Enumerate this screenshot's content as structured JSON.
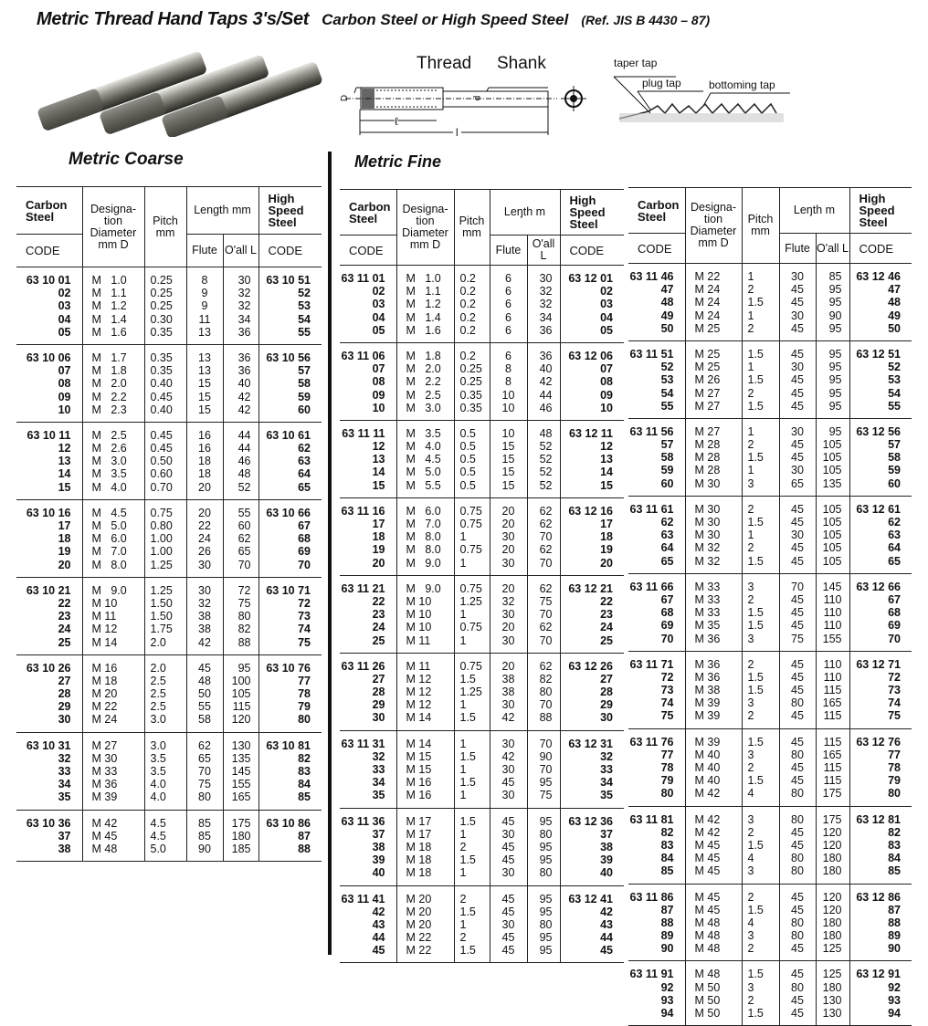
{
  "header": {
    "title": "Metric Thread Hand Taps  3's/Set",
    "subtitle": "Carbon Steel or  High Speed Steel",
    "reference": "(Ref. JIS B 4430 – 87)"
  },
  "diagram": {
    "thread": "Thread",
    "shank": "Shank",
    "D": "D",
    "d": "d",
    "l_small": "ℓ",
    "l_large": "l",
    "taper_tap": "taper tap",
    "plug_tap": "plug tap",
    "bottoming_tap": "bottoming tap"
  },
  "sections": {
    "coarse": "Metric Coarse",
    "fine": "Metric Fine"
  },
  "table_headers": {
    "coarse": {
      "carbon": "Carbon Steel",
      "code": "CODE",
      "desig": "Designa-tion Diameter mm  D",
      "pitch": "Pitch mm",
      "length": "Length mm",
      "flute": "Flute",
      "oall": "O'all L",
      "hss": "High Speed Steel",
      "hss_code": "CODE"
    },
    "fine": {
      "carbon": "Carbon Steel",
      "code": "CODE",
      "desig": "Designa-tion Diameter mm  D",
      "pitch": "Pitch mm",
      "length": "Leŋth m",
      "flute": "Flute",
      "oall": "O'all L",
      "hss": "High Speed Steel",
      "hss_code": "CODE"
    }
  },
  "tables": {
    "coarse": [
      [
        [
          "63 10 01",
          "M   1.0",
          "0.25",
          "8",
          "30",
          "63 10 51"
        ],
        [
          "02",
          "M   1.1",
          "0.25",
          "9",
          "32",
          "52"
        ],
        [
          "03",
          "M   1.2",
          "0.25",
          "9",
          "32",
          "53"
        ],
        [
          "04",
          "M   1.4",
          "0.30",
          "11",
          "34",
          "54"
        ],
        [
          "05",
          "M   1.6",
          "0.35",
          "13",
          "36",
          "55"
        ]
      ],
      [
        [
          "63 10 06",
          "M   1.7",
          "0.35",
          "13",
          "36",
          "63 10 56"
        ],
        [
          "07",
          "M   1.8",
          "0.35",
          "13",
          "36",
          "57"
        ],
        [
          "08",
          "M   2.0",
          "0.40",
          "15",
          "40",
          "58"
        ],
        [
          "09",
          "M   2.2",
          "0.45",
          "15",
          "42",
          "59"
        ],
        [
          "10",
          "M   2.3",
          "0.40",
          "15",
          "42",
          "60"
        ]
      ],
      [
        [
          "63 10 11",
          "M   2.5",
          "0.45",
          "16",
          "44",
          "63 10 61"
        ],
        [
          "12",
          "M   2.6",
          "0.45",
          "16",
          "44",
          "62"
        ],
        [
          "13",
          "M   3.0",
          "0.50",
          "18",
          "46",
          "63"
        ],
        [
          "14",
          "M   3.5",
          "0.60",
          "18",
          "48",
          "64"
        ],
        [
          "15",
          "M   4.0",
          "0.70",
          "20",
          "52",
          "65"
        ]
      ],
      [
        [
          "63 10 16",
          "M   4.5",
          "0.75",
          "20",
          "55",
          "63 10 66"
        ],
        [
          "17",
          "M   5.0",
          "0.80",
          "22",
          "60",
          "67"
        ],
        [
          "18",
          "M   6.0",
          "1.00",
          "24",
          "62",
          "68"
        ],
        [
          "19",
          "M   7.0",
          "1.00",
          "26",
          "65",
          "69"
        ],
        [
          "20",
          "M   8.0",
          "1.25",
          "30",
          "70",
          "70"
        ]
      ],
      [
        [
          "63 10 21",
          "M   9.0",
          "1.25",
          "30",
          "72",
          "63 10 71"
        ],
        [
          "22",
          "M 10",
          "1.50",
          "32",
          "75",
          "72"
        ],
        [
          "23",
          "M 11",
          "1.50",
          "38",
          "80",
          "73"
        ],
        [
          "24",
          "M 12",
          "1.75",
          "38",
          "82",
          "74"
        ],
        [
          "25",
          "M 14",
          "2.0",
          "42",
          "88",
          "75"
        ]
      ],
      [
        [
          "63 10 26",
          "M 16",
          "2.0",
          "45",
          "95",
          "63 10 76"
        ],
        [
          "27",
          "M 18",
          "2.5",
          "48",
          "100",
          "77"
        ],
        [
          "28",
          "M 20",
          "2.5",
          "50",
          "105",
          "78"
        ],
        [
          "29",
          "M 22",
          "2.5",
          "55",
          "115",
          "79"
        ],
        [
          "30",
          "M 24",
          "3.0",
          "58",
          "120",
          "80"
        ]
      ],
      [
        [
          "63 10 31",
          "M 27",
          "3.0",
          "62",
          "130",
          "63 10 81"
        ],
        [
          "32",
          "M 30",
          "3.5",
          "65",
          "135",
          "82"
        ],
        [
          "33",
          "M 33",
          "3.5",
          "70",
          "145",
          "83"
        ],
        [
          "34",
          "M 36",
          "4.0",
          "75",
          "155",
          "84"
        ],
        [
          "35",
          "M 39",
          "4.0",
          "80",
          "165",
          "85"
        ]
      ],
      [
        [
          "63 10 36",
          "M 42",
          "4.5",
          "85",
          "175",
          "63 10 86"
        ],
        [
          "37",
          "M 45",
          "4.5",
          "85",
          "180",
          "87"
        ],
        [
          "38",
          "M 48",
          "5.0",
          "90",
          "185",
          "88"
        ]
      ]
    ],
    "fine_1": [
      [
        [
          "63 11 01",
          "M   1.0",
          "0.2",
          "6",
          "30",
          "63 12 01"
        ],
        [
          "02",
          "M   1.1",
          "0.2",
          "6",
          "32",
          "02"
        ],
        [
          "03",
          "M   1.2",
          "0.2",
          "6",
          "32",
          "03"
        ],
        [
          "04",
          "M   1.4",
          "0.2",
          "6",
          "34",
          "04"
        ],
        [
          "05",
          "M   1.6",
          "0.2",
          "6",
          "36",
          "05"
        ]
      ],
      [
        [
          "63 11 06",
          "M   1.8",
          "0.2",
          "6",
          "36",
          "63 12 06"
        ],
        [
          "07",
          "M   2.0",
          "0.25",
          "8",
          "40",
          "07"
        ],
        [
          "08",
          "M   2.2",
          "0.25",
          "8",
          "42",
          "08"
        ],
        [
          "09",
          "M   2.5",
          "0.35",
          "10",
          "44",
          "09"
        ],
        [
          "10",
          "M   3.0",
          "0.35",
          "10",
          "46",
          "10"
        ]
      ],
      [
        [
          "63 11 11",
          "M   3.5",
          "0.5",
          "10",
          "48",
          "63 12 11"
        ],
        [
          "12",
          "M   4.0",
          "0.5",
          "15",
          "52",
          "12"
        ],
        [
          "13",
          "M   4.5",
          "0.5",
          "15",
          "52",
          "13"
        ],
        [
          "14",
          "M   5.0",
          "0.5",
          "15",
          "52",
          "14"
        ],
        [
          "15",
          "M   5.5",
          "0.5",
          "15",
          "52",
          "15"
        ]
      ],
      [
        [
          "63 11 16",
          "M   6.0",
          "0.75",
          "20",
          "62",
          "63 12 16"
        ],
        [
          "17",
          "M   7.0",
          "0.75",
          "20",
          "62",
          "17"
        ],
        [
          "18",
          "M   8.0",
          "1",
          "30",
          "70",
          "18"
        ],
        [
          "19",
          "M   8.0",
          "0.75",
          "20",
          "62",
          "19"
        ],
        [
          "20",
          "M   9.0",
          "1",
          "30",
          "70",
          "20"
        ]
      ],
      [
        [
          "63 11 21",
          "M   9.0",
          "0.75",
          "20",
          "62",
          "63 12 21"
        ],
        [
          "22",
          "M 10",
          "1.25",
          "32",
          "75",
          "22"
        ],
        [
          "23",
          "M 10",
          "1",
          "30",
          "70",
          "23"
        ],
        [
          "24",
          "M 10",
          "0.75",
          "20",
          "62",
          "24"
        ],
        [
          "25",
          "M 11",
          "1",
          "30",
          "70",
          "25"
        ]
      ],
      [
        [
          "63 11 26",
          "M 11",
          "0.75",
          "20",
          "62",
          "63 12 26"
        ],
        [
          "27",
          "M 12",
          "1.5",
          "38",
          "82",
          "27"
        ],
        [
          "28",
          "M 12",
          "1.25",
          "38",
          "80",
          "28"
        ],
        [
          "29",
          "M 12",
          "1",
          "30",
          "70",
          "29"
        ],
        [
          "30",
          "M 14",
          "1.5",
          "42",
          "88",
          "30"
        ]
      ],
      [
        [
          "63 11 31",
          "M 14",
          "1",
          "30",
          "70",
          "63 12 31"
        ],
        [
          "32",
          "M 15",
          "1.5",
          "42",
          "90",
          "32"
        ],
        [
          "33",
          "M 15",
          "1",
          "30",
          "70",
          "33"
        ],
        [
          "34",
          "M 16",
          "1.5",
          "45",
          "95",
          "34"
        ],
        [
          "35",
          "M 16",
          "1",
          "30",
          "75",
          "35"
        ]
      ],
      [
        [
          "63 11 36",
          "M 17",
          "1.5",
          "45",
          "95",
          "63 12 36"
        ],
        [
          "37",
          "M 17",
          "1",
          "30",
          "80",
          "37"
        ],
        [
          "38",
          "M 18",
          "2",
          "45",
          "95",
          "38"
        ],
        [
          "39",
          "M 18",
          "1.5",
          "45",
          "95",
          "39"
        ],
        [
          "40",
          "M 18",
          "1",
          "30",
          "80",
          "40"
        ]
      ],
      [
        [
          "63 11 41",
          "M 20",
          "2",
          "45",
          "95",
          "63 12 41"
        ],
        [
          "42",
          "M 20",
          "1.5",
          "45",
          "95",
          "42"
        ],
        [
          "43",
          "M 20",
          "1",
          "30",
          "80",
          "43"
        ],
        [
          "44",
          "M 22",
          "2",
          "45",
          "95",
          "44"
        ],
        [
          "45",
          "M 22",
          "1.5",
          "45",
          "95",
          "45"
        ]
      ]
    ],
    "fine_2": [
      [
        [
          "63 11 46",
          "M 22",
          "1",
          "30",
          "85",
          "63 12 46"
        ],
        [
          "47",
          "M 24",
          "2",
          "45",
          "95",
          "47"
        ],
        [
          "48",
          "M 24",
          "1.5",
          "45",
          "95",
          "48"
        ],
        [
          "49",
          "M 24",
          "1",
          "30",
          "90",
          "49"
        ],
        [
          "50",
          "M 25",
          "2",
          "45",
          "95",
          "50"
        ]
      ],
      [
        [
          "63 11 51",
          "M 25",
          "1.5",
          "45",
          "95",
          "63 12 51"
        ],
        [
          "52",
          "M 25",
          "1",
          "30",
          "95",
          "52"
        ],
        [
          "53",
          "M 26",
          "1.5",
          "45",
          "95",
          "53"
        ],
        [
          "54",
          "M 27",
          "2",
          "45",
          "95",
          "54"
        ],
        [
          "55",
          "M 27",
          "1.5",
          "45",
          "95",
          "55"
        ]
      ],
      [
        [
          "63 11 56",
          "M 27",
          "1",
          "30",
          "95",
          "63 12 56"
        ],
        [
          "57",
          "M 28",
          "2",
          "45",
          "105",
          "57"
        ],
        [
          "58",
          "M 28",
          "1.5",
          "45",
          "105",
          "58"
        ],
        [
          "59",
          "M 28",
          "1",
          "30",
          "105",
          "59"
        ],
        [
          "60",
          "M 30",
          "3",
          "65",
          "135",
          "60"
        ]
      ],
      [
        [
          "63 11 61",
          "M 30",
          "2",
          "45",
          "105",
          "63 12 61"
        ],
        [
          "62",
          "M 30",
          "1.5",
          "45",
          "105",
          "62"
        ],
        [
          "63",
          "M 30",
          "1",
          "30",
          "105",
          "63"
        ],
        [
          "64",
          "M 32",
          "2",
          "45",
          "105",
          "64"
        ],
        [
          "65",
          "M 32",
          "1.5",
          "45",
          "105",
          "65"
        ]
      ],
      [
        [
          "63 11 66",
          "M 33",
          "3",
          "70",
          "145",
          "63 12 66"
        ],
        [
          "67",
          "M 33",
          "2",
          "45",
          "110",
          "67"
        ],
        [
          "68",
          "M 33",
          "1.5",
          "45",
          "110",
          "68"
        ],
        [
          "69",
          "M 35",
          "1.5",
          "45",
          "110",
          "69"
        ],
        [
          "70",
          "M 36",
          "3",
          "75",
          "155",
          "70"
        ]
      ],
      [
        [
          "63 11 71",
          "M 36",
          "2",
          "45",
          "110",
          "63 12 71"
        ],
        [
          "72",
          "M 36",
          "1.5",
          "45",
          "110",
          "72"
        ],
        [
          "73",
          "M 38",
          "1.5",
          "45",
          "115",
          "73"
        ],
        [
          "74",
          "M 39",
          "3",
          "80",
          "165",
          "74"
        ],
        [
          "75",
          "M 39",
          "2",
          "45",
          "115",
          "75"
        ]
      ],
      [
        [
          "63 11 76",
          "M 39",
          "1.5",
          "45",
          "115",
          "63 12 76"
        ],
        [
          "77",
          "M 40",
          "3",
          "80",
          "165",
          "77"
        ],
        [
          "78",
          "M 40",
          "2",
          "45",
          "115",
          "78"
        ],
        [
          "79",
          "M 40",
          "1.5",
          "45",
          "115",
          "79"
        ],
        [
          "80",
          "M 42",
          "4",
          "80",
          "175",
          "80"
        ]
      ],
      [
        [
          "63 11 81",
          "M 42",
          "3",
          "80",
          "175",
          "63 12 81"
        ],
        [
          "82",
          "M 42",
          "2",
          "45",
          "120",
          "82"
        ],
        [
          "83",
          "M 45",
          "1.5",
          "45",
          "120",
          "83"
        ],
        [
          "84",
          "M 45",
          "4",
          "80",
          "180",
          "84"
        ],
        [
          "85",
          "M 45",
          "3",
          "80",
          "180",
          "85"
        ]
      ],
      [
        [
          "63 11 86",
          "M 45",
          "2",
          "45",
          "120",
          "63 12 86"
        ],
        [
          "87",
          "M 45",
          "1.5",
          "45",
          "120",
          "87"
        ],
        [
          "88",
          "M 48",
          "4",
          "80",
          "180",
          "88"
        ],
        [
          "89",
          "M 48",
          "3",
          "80",
          "180",
          "89"
        ],
        [
          "90",
          "M 48",
          "2",
          "45",
          "125",
          "90"
        ]
      ],
      [
        [
          "63 11 91",
          "M 48",
          "1.5",
          "45",
          "125",
          "63 12 91"
        ],
        [
          "92",
          "M 50",
          "3",
          "80",
          "180",
          "92"
        ],
        [
          "93",
          "M 50",
          "2",
          "45",
          "130",
          "93"
        ],
        [
          "94",
          "M 50",
          "1.5",
          "45",
          "130",
          "94"
        ]
      ]
    ]
  }
}
